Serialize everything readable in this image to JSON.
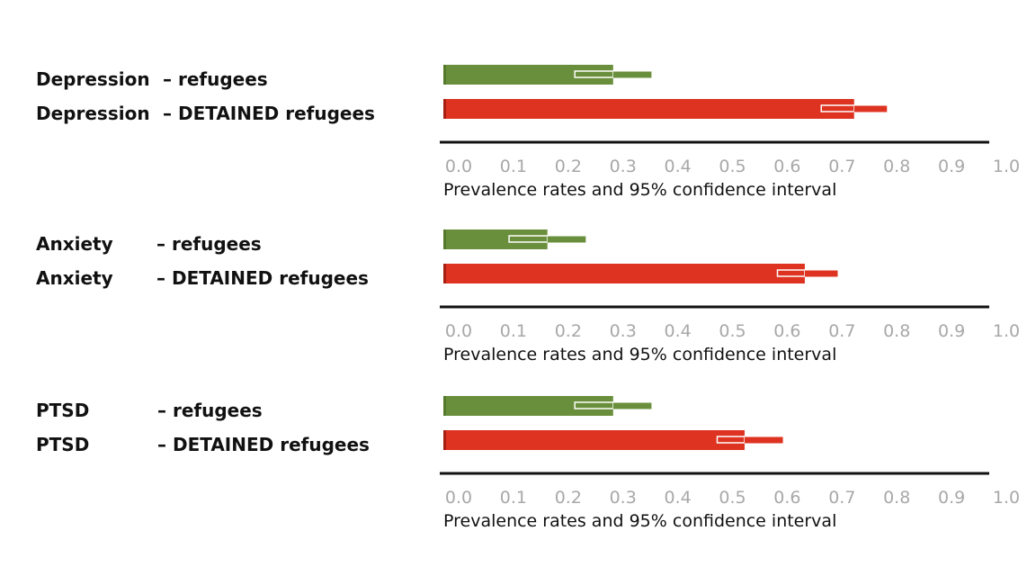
{
  "colors": {
    "refugees": "#6a8f3c",
    "refugees_edge": "#557a2c",
    "detained": "#dd3320",
    "detained_edge": "#a81e10",
    "axis": "#111111",
    "tick_label": "#a8a8a8"
  },
  "chart_data": [
    {
      "type": "bar",
      "orientation": "horizontal",
      "condition": "Depression",
      "xlabel": "Prevalence rates and 95% confidence interval",
      "xlim": [
        0,
        1.0
      ],
      "ticks": [
        "0.0",
        "0.1",
        "0.2",
        "0.3",
        "0.4",
        "0.5",
        "0.6",
        "0.7",
        "0.8",
        "0.9",
        "1.0"
      ],
      "series": [
        {
          "name": "refugees",
          "label_condition": "Depression",
          "label_group": "– refugees",
          "value": 0.31,
          "ci": [
            0.24,
            0.38
          ]
        },
        {
          "name": "detained",
          "label_condition": "Depression",
          "label_group": "– DETAINED refugees",
          "value": 0.75,
          "ci": [
            0.69,
            0.81
          ]
        }
      ]
    },
    {
      "type": "bar",
      "orientation": "horizontal",
      "condition": "Anxiety",
      "xlabel": "Prevalence rates and 95% confidence interval",
      "xlim": [
        0,
        1.0
      ],
      "ticks": [
        "0.0",
        "0.1",
        "0.2",
        "0.3",
        "0.4",
        "0.5",
        "0.6",
        "0.7",
        "0.8",
        "0.9",
        "1.0"
      ],
      "series": [
        {
          "name": "refugees",
          "label_condition": "Anxiety",
          "label_group": "– refugees",
          "value": 0.19,
          "ci": [
            0.12,
            0.26
          ]
        },
        {
          "name": "detained",
          "label_condition": "Anxiety",
          "label_group": "– DETAINED refugees",
          "value": 0.66,
          "ci": [
            0.61,
            0.72
          ]
        }
      ]
    },
    {
      "type": "bar",
      "orientation": "horizontal",
      "condition": "PTSD",
      "xlabel": "Prevalence rates and 95% confidence interval",
      "xlim": [
        0,
        1.0
      ],
      "ticks": [
        "0.0",
        "0.1",
        "0.2",
        "0.3",
        "0.4",
        "0.5",
        "0.6",
        "0.7",
        "0.8",
        "0.9",
        "1.0"
      ],
      "series": [
        {
          "name": "refugees",
          "label_condition": "PTSD",
          "label_group": "– refugees",
          "value": 0.31,
          "ci": [
            0.24,
            0.38
          ]
        },
        {
          "name": "detained",
          "label_condition": "PTSD",
          "label_group": "– DETAINED refugees",
          "value": 0.55,
          "ci": [
            0.5,
            0.62
          ]
        }
      ]
    }
  ]
}
